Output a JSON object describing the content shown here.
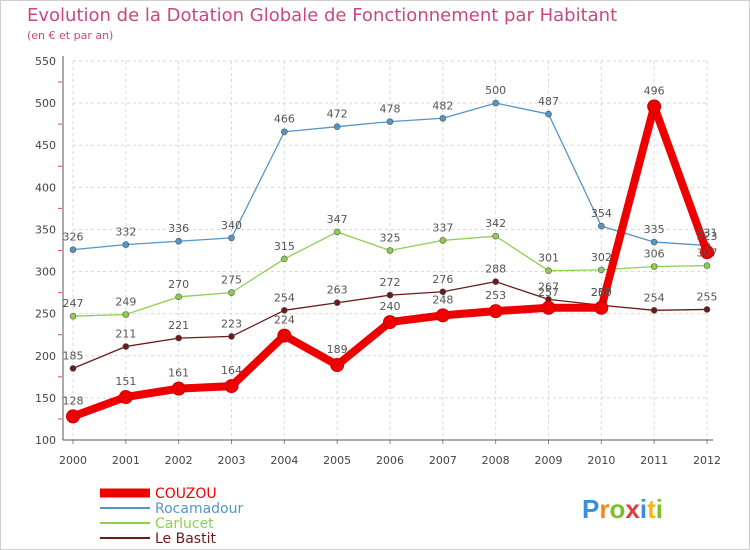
{
  "chart_data": {
    "type": "line",
    "title": "Evolution de la Dotation Globale de Fonctionnement par Habitant",
    "subtitle": "(en € et par an)",
    "ylim": [
      100,
      550
    ],
    "yticks": [
      100,
      150,
      200,
      250,
      300,
      350,
      400,
      450,
      500,
      550
    ],
    "categories": [
      "2000",
      "2001",
      "2002",
      "2003",
      "2004",
      "2005",
      "2006",
      "2007",
      "2008",
      "2009",
      "2010",
      "2011",
      "2012"
    ],
    "series": [
      {
        "name": "Le Bastit",
        "color": "#6b1a1a",
        "values": [
          185,
          211,
          221,
          223,
          254,
          263,
          272,
          276,
          288,
          267,
          260,
          254,
          255
        ],
        "labels": [
          "185",
          "211",
          "221",
          "223",
          "254",
          "263",
          "272",
          "276",
          "288",
          "267",
          "260",
          "254",
          "255"
        ]
      },
      {
        "name": "Carlucet",
        "color": "#8cd04c",
        "values": [
          247,
          249,
          270,
          275,
          315,
          347,
          325,
          337,
          342,
          301,
          302,
          306,
          307
        ],
        "labels": [
          "247",
          "249",
          "270",
          "275",
          "315",
          "347",
          "325",
          "337",
          "342",
          "301",
          "302",
          "306",
          "307"
        ]
      },
      {
        "name": "Rocamadour",
        "color": "#5596c8",
        "values": [
          326,
          332,
          336,
          340,
          466,
          472,
          478,
          482,
          500,
          487,
          354,
          335,
          331
        ],
        "labels": [
          "326",
          "332",
          "336",
          "340",
          "466",
          "472",
          "478",
          "482",
          "500",
          "487",
          "354",
          "335",
          "331"
        ]
      },
      {
        "name": "COUZOU",
        "color": "#ee0000",
        "values": [
          128,
          151,
          161,
          164,
          224,
          189,
          240,
          248,
          253,
          257,
          257,
          496,
          323
        ],
        "labels": [
          "128",
          "151",
          "161",
          "164",
          "224",
          "189",
          "240",
          "248",
          "253",
          "257",
          "257",
          "496",
          "323"
        ]
      }
    ],
    "legend": [
      "COUZOU",
      "Rocamadour",
      "Carlucet",
      "Le Bastit"
    ],
    "legend_position": "bottom-left",
    "logo": "Proxiti"
  }
}
